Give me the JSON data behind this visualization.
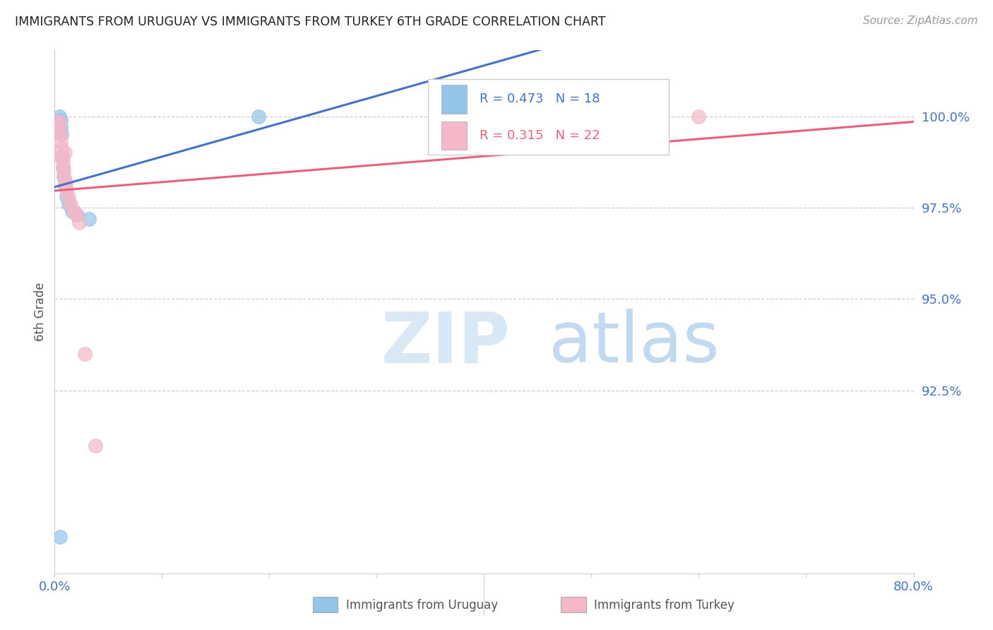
{
  "title": "IMMIGRANTS FROM URUGUAY VS IMMIGRANTS FROM TURKEY 6TH GRADE CORRELATION CHART",
  "source": "Source: ZipAtlas.com",
  "ylabel": "6th Grade",
  "xmin": 0.0,
  "xmax": 80.0,
  "ymin": 87.5,
  "ymax": 101.8,
  "uruguay_R": 0.473,
  "uruguay_N": 18,
  "turkey_R": 0.315,
  "turkey_N": 22,
  "uruguay_color": "#92C5E8",
  "turkey_color": "#F5B8C8",
  "uruguay_line_color": "#4472C4",
  "turkey_line_color": "#E8607A",
  "legend_label_uruguay": "Immigrants from Uruguay",
  "legend_label_turkey": "Immigrants from Turkey",
  "title_color": "#222222",
  "source_color": "#999999",
  "axis_label_color": "#4472C4",
  "watermark_zip": "ZIP",
  "watermark_atlas": "atlas",
  "watermark_color": "#D8E8F5",
  "ytick_vals": [
    92.5,
    95.0,
    97.5,
    100.0
  ],
  "xtick_positions": [
    0,
    10,
    20,
    30,
    40,
    50,
    60,
    70,
    80
  ],
  "uruguay_x": [
    0.15,
    0.25,
    0.35,
    0.45,
    0.55,
    0.6,
    0.65,
    0.7,
    0.75,
    0.85,
    0.95,
    1.1,
    1.3,
    1.6,
    2.1,
    3.2,
    19.0,
    0.5
  ],
  "uruguay_y": [
    99.6,
    99.85,
    99.75,
    100.0,
    99.9,
    99.7,
    99.5,
    98.9,
    98.6,
    98.35,
    98.1,
    97.8,
    97.6,
    97.4,
    97.3,
    97.2,
    100.0,
    88.5
  ],
  "turkey_x": [
    0.2,
    0.35,
    0.45,
    0.55,
    0.55,
    0.65,
    0.75,
    0.8,
    0.85,
    0.9,
    0.95,
    1.0,
    1.1,
    1.3,
    1.5,
    1.8,
    2.0,
    2.3,
    2.8,
    3.8,
    60.0,
    0.5
  ],
  "turkey_y": [
    99.8,
    99.65,
    99.85,
    99.5,
    99.3,
    99.1,
    98.8,
    98.6,
    98.5,
    98.3,
    99.0,
    98.2,
    98.0,
    97.8,
    97.6,
    97.4,
    97.3,
    97.1,
    93.5,
    91.0,
    100.0,
    98.9
  ]
}
